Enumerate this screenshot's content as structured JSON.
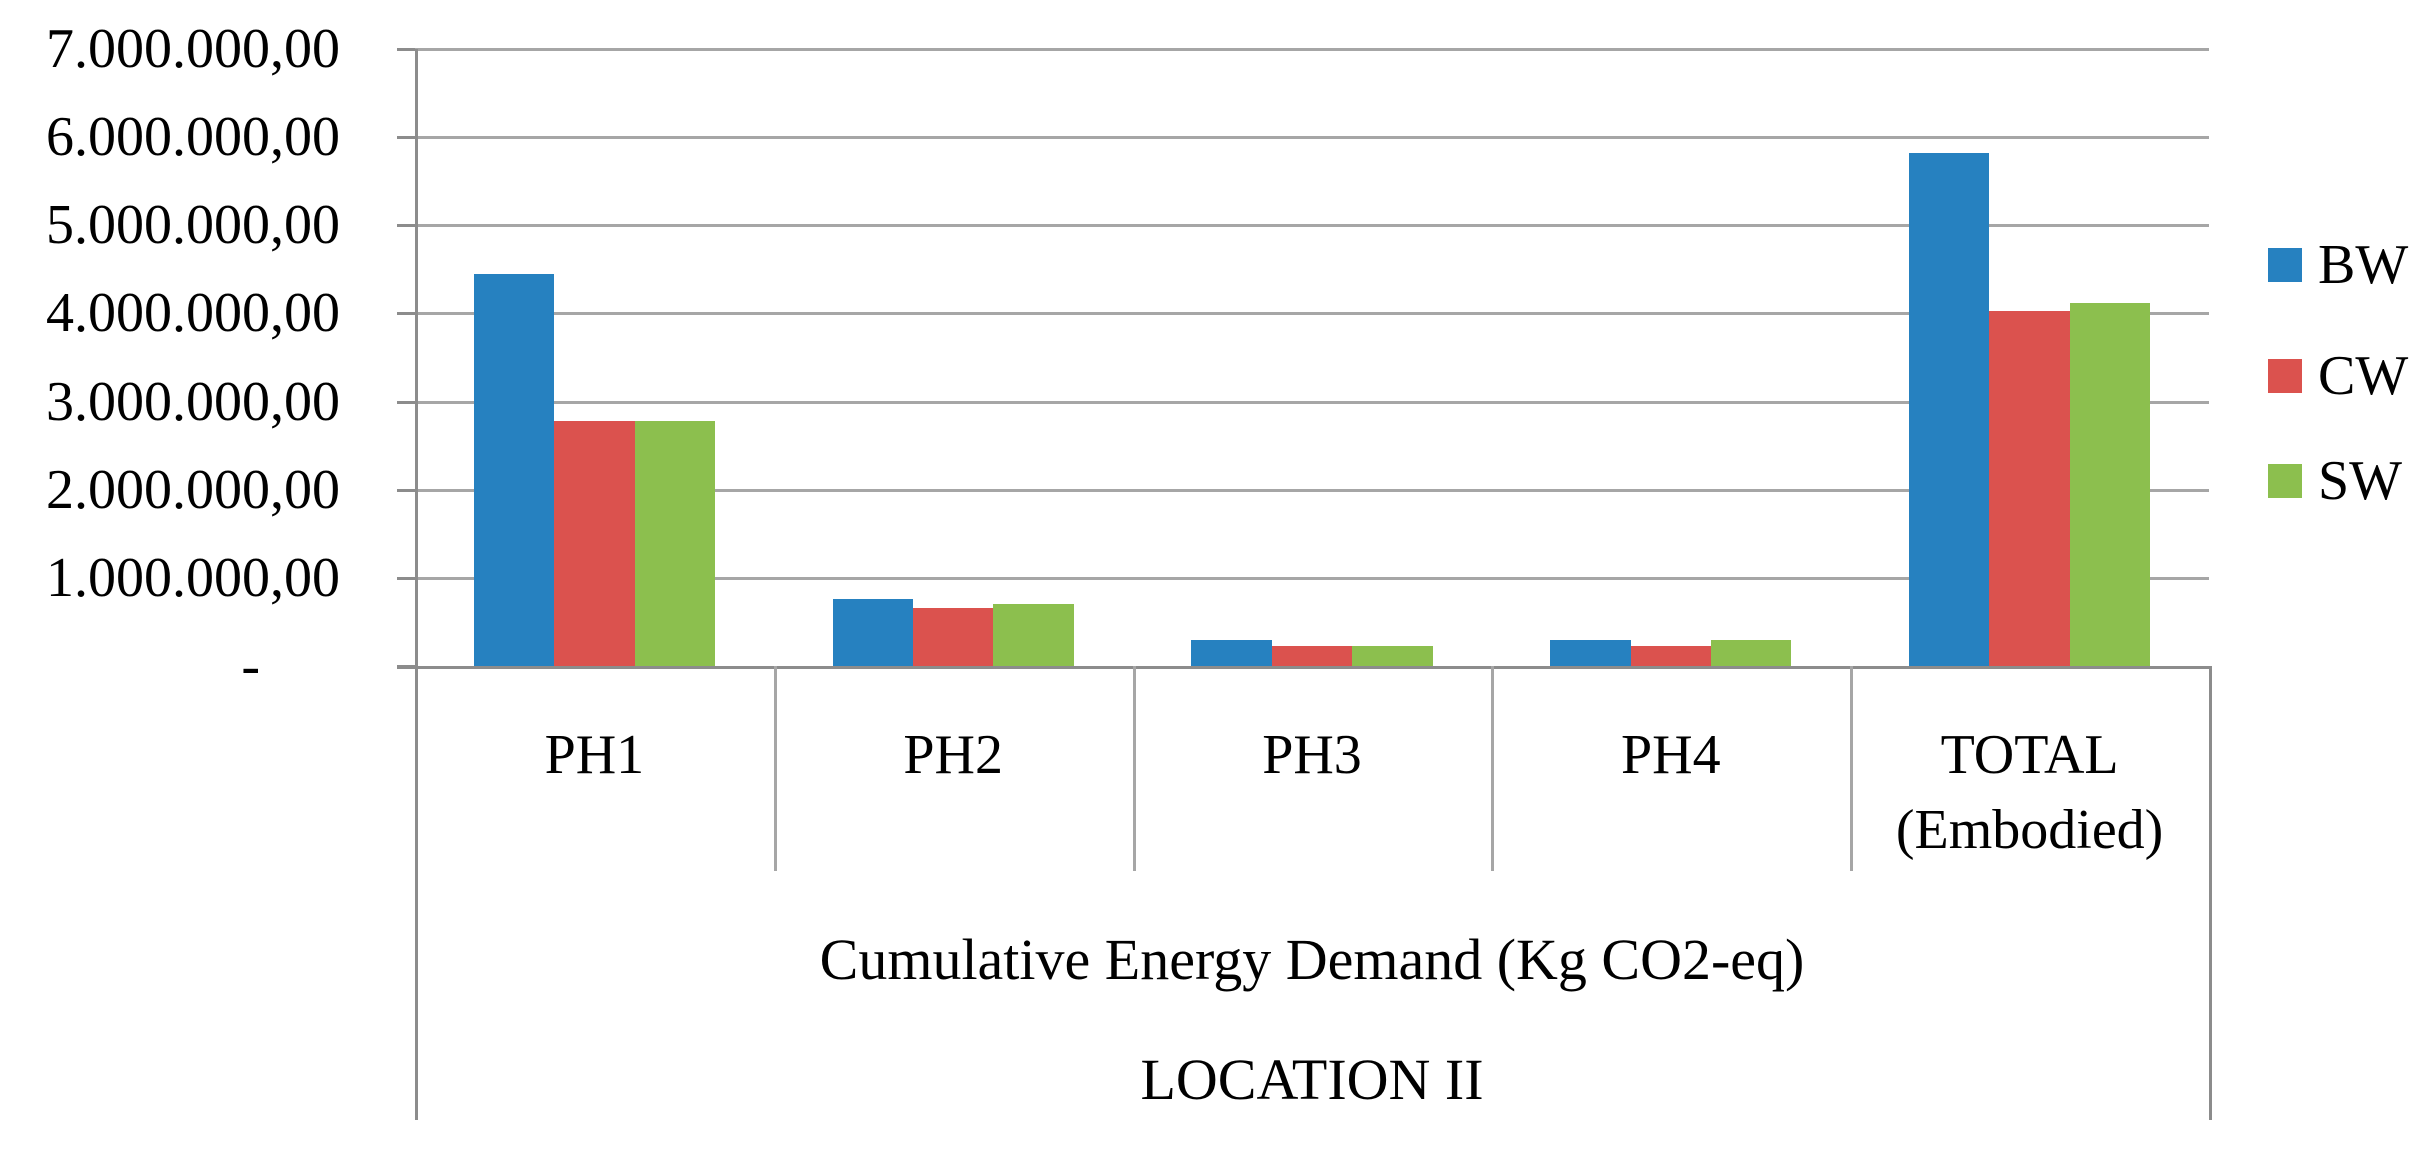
{
  "chart_data": {
    "type": "bar",
    "title": "",
    "categories": [
      "PH1",
      "PH2",
      "PH3",
      "PH4",
      "TOTAL\n(Embodied)"
    ],
    "series": [
      {
        "name": "BW",
        "color": "#2681C0",
        "values": [
          4450000,
          760000,
          290000,
          290000,
          5820000
        ]
      },
      {
        "name": "CW",
        "color": "#DB524E",
        "values": [
          2780000,
          660000,
          230000,
          230000,
          4030000
        ]
      },
      {
        "name": "SW",
        "color": "#8CBF4E",
        "values": [
          2780000,
          700000,
          230000,
          290000,
          4120000
        ]
      }
    ],
    "y_axis": {
      "tick_labels": [
        "7.000.000,00",
        "6.000.000,00",
        "5.000.000,00",
        "4.000.000,00",
        "3.000.000,00",
        "2.000.000,00",
        "1.000.000,00",
        "-"
      ],
      "tick_values": [
        7000000,
        6000000,
        5000000,
        4000000,
        3000000,
        2000000,
        1000000,
        0
      ]
    },
    "ylim": [
      0,
      7000000
    ],
    "grid": true,
    "legend_position": "right",
    "xlabel": "Cumulative Energy Demand (Kg CO2-eq)",
    "xlabel_line2": "LOCATION II"
  },
  "colors": {
    "gridline": "#A6A6A6",
    "axis": "#8C8C8C",
    "background": "#ffffff",
    "text": "#000000"
  },
  "axis_titles": {
    "line1": "Cumulative Energy Demand (Kg CO2-eq)",
    "line2": "LOCATION II"
  }
}
